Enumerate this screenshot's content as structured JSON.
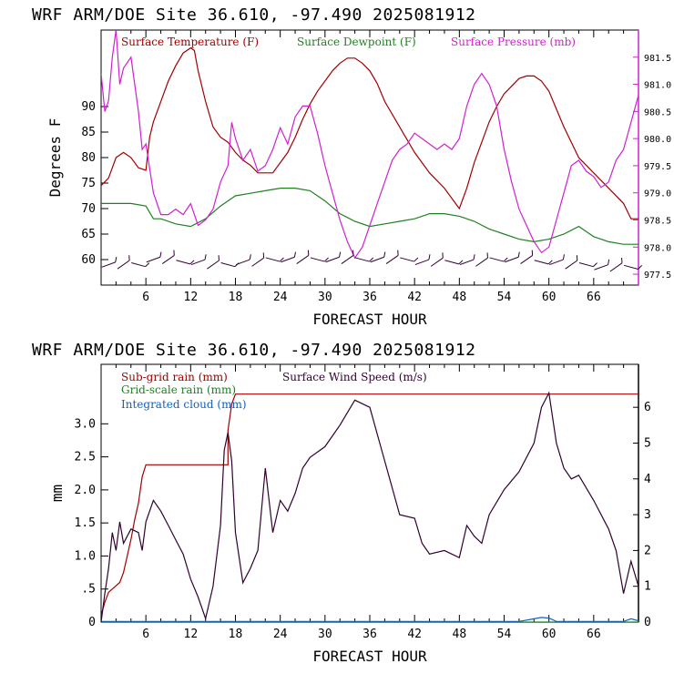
{
  "chart_data": [
    {
      "type": "line",
      "title": "WRF   ARM/DOE Site  36.610, -97.490  2025081912",
      "xlabel": "FORECAST HOUR",
      "ylabel": "Degrees F",
      "xlim": [
        0,
        72
      ],
      "ylim": [
        55,
        105
      ],
      "y2lim": [
        977.3,
        982.0
      ],
      "xticks": [
        6,
        12,
        18,
        24,
        30,
        36,
        42,
        48,
        54,
        60,
        66
      ],
      "yticks": [
        60,
        65,
        70,
        75,
        80,
        85,
        90
      ],
      "y2ticks": [
        977.5,
        978.0,
        978.5,
        979.0,
        979.5,
        980.0,
        980.5,
        981.0,
        981.5
      ],
      "y2ticklabels": [
        "977.5",
        "978.0",
        "978.5",
        "979.0",
        "979.5",
        "980.0",
        "980.5",
        "981.0",
        "981.5"
      ],
      "colors": {
        "temp": "#a00000",
        "dew": "#208020",
        "pres": "#d020d0",
        "barb": "#300030"
      },
      "series": [
        {
          "name": "Surface Temperature (F)",
          "axis": "left",
          "x": [
            0,
            1,
            2,
            3,
            4,
            5,
            6,
            6.5,
            7,
            8,
            9,
            10,
            11,
            12,
            12.5,
            13,
            14,
            15,
            16,
            17,
            18,
            19,
            20,
            21,
            22,
            23,
            24,
            25,
            26,
            27,
            28,
            29,
            30,
            31,
            32,
            33,
            34,
            35,
            36,
            37,
            38,
            40,
            42,
            44,
            46,
            48,
            49,
            50,
            51,
            52,
            53,
            54,
            55,
            56,
            57,
            58,
            59,
            60,
            62,
            64,
            66,
            68,
            70,
            71,
            72
          ],
          "y": [
            74.5,
            76,
            80,
            81,
            80,
            78,
            77.5,
            84,
            87,
            91,
            95,
            98,
            100.5,
            101.5,
            101,
            97,
            91,
            86,
            84,
            83,
            81,
            79.5,
            78.5,
            77,
            77,
            77,
            79,
            81,
            84,
            87.5,
            90.5,
            93,
            95,
            97,
            98.5,
            99.5,
            99.5,
            98.5,
            97,
            94.5,
            91,
            86,
            81,
            77,
            74,
            70,
            74,
            79,
            83,
            87,
            90,
            92.5,
            94,
            95.5,
            96,
            96,
            95,
            93,
            86,
            80,
            77,
            74,
            71,
            68,
            68
          ]
        },
        {
          "name": "Surface Dewpoint (F)",
          "axis": "left",
          "x": [
            0,
            2,
            4,
            6,
            7,
            8,
            10,
            12,
            14,
            16,
            18,
            20,
            22,
            24,
            26,
            28,
            30,
            32,
            34,
            36,
            38,
            40,
            42,
            44,
            46,
            48,
            50,
            52,
            54,
            56,
            58,
            60,
            62,
            64,
            66,
            68,
            70,
            72
          ],
          "y": [
            71,
            71,
            71,
            70.5,
            68,
            68,
            67,
            66.5,
            68,
            70.5,
            72.5,
            73,
            73.5,
            74,
            74,
            73.5,
            71.5,
            69,
            67.5,
            66.5,
            67,
            67.5,
            68,
            69,
            69,
            68.5,
            67.5,
            66,
            65,
            64,
            63.5,
            64,
            65,
            66.5,
            64.5,
            63.5,
            63,
            63
          ]
        },
        {
          "name": "Surface Pressure (mb)",
          "axis": "right",
          "x": [
            0,
            0.5,
            1,
            1.5,
            2,
            2.5,
            3,
            4,
            5,
            5.5,
            6,
            7,
            8,
            9,
            10,
            11,
            12,
            13,
            14,
            15,
            16,
            17,
            17.5,
            18,
            19,
            20,
            21,
            22,
            23,
            24,
            25,
            26,
            27,
            28,
            29,
            30,
            31,
            32,
            33,
            34,
            35,
            36,
            37,
            38,
            39,
            40,
            41,
            42,
            43,
            44,
            45,
            46,
            47,
            48,
            49,
            50,
            51,
            52,
            53,
            54,
            55,
            56,
            57,
            58,
            59,
            60,
            61,
            62,
            63,
            64,
            65,
            66,
            67,
            68,
            69,
            70,
            71,
            72
          ],
          "y": [
            981.2,
            980.5,
            980.7,
            981.5,
            982.0,
            981.0,
            981.3,
            981.5,
            980.5,
            979.8,
            979.9,
            979.0,
            978.6,
            978.6,
            978.7,
            978.6,
            978.8,
            978.4,
            978.5,
            978.7,
            979.2,
            979.5,
            980.3,
            980.0,
            979.6,
            979.8,
            979.4,
            979.5,
            979.8,
            980.2,
            979.9,
            980.4,
            980.6,
            980.6,
            980.1,
            979.5,
            979.0,
            978.5,
            978.1,
            977.8,
            978.0,
            978.4,
            978.8,
            979.2,
            979.6,
            979.8,
            979.9,
            980.1,
            980.0,
            979.9,
            979.8,
            979.9,
            979.8,
            980.0,
            980.6,
            981.0,
            981.2,
            981.0,
            980.6,
            979.8,
            979.2,
            978.7,
            978.4,
            978.1,
            977.9,
            978.0,
            978.5,
            979.0,
            979.5,
            979.6,
            979.4,
            979.3,
            979.1,
            979.2,
            979.6,
            979.8,
            980.3,
            980.8
          ]
        },
        {
          "name": "wind barbs",
          "axis": "left",
          "x": [
            1,
            3,
            5,
            7,
            9,
            11,
            13,
            15,
            17,
            19,
            21,
            23,
            25,
            27,
            29,
            31,
            33,
            35,
            37,
            39,
            41,
            43,
            45,
            47,
            49,
            51,
            53,
            55,
            57,
            59,
            61,
            63,
            65,
            67,
            69,
            71
          ],
          "y": [
            59,
            59,
            59,
            60,
            60,
            59.5,
            59.5,
            59,
            59,
            59.5,
            59.5,
            60,
            60,
            60,
            60,
            60,
            60,
            60,
            60,
            60,
            60,
            59.5,
            59.5,
            59.5,
            59.5,
            59.5,
            60,
            60,
            60,
            59.5,
            59.5,
            59,
            59,
            58.5,
            58.5,
            58.5
          ]
        }
      ]
    },
    {
      "type": "line",
      "title": "WRF   ARM/DOE Site  36.610, -97.490  2025081912",
      "xlabel": "FORECAST HOUR",
      "ylabel": "mm",
      "xlim": [
        0,
        72
      ],
      "ylim": [
        0,
        3.9
      ],
      "y2lim": [
        0,
        7.2
      ],
      "xticks": [
        6,
        12,
        18,
        24,
        30,
        36,
        42,
        48,
        54,
        60,
        66
      ],
      "yticks": [
        0,
        0.5,
        1.0,
        1.5,
        2.0,
        2.5,
        3.0
      ],
      "yticklabels": [
        "0",
        ".5",
        "1.0",
        "1.5",
        "2.0",
        "2.5",
        "3.0"
      ],
      "y2ticks": [
        0,
        1,
        2,
        3,
        4,
        5,
        6
      ],
      "y2ticklabels": [
        "0",
        "1",
        "2",
        "3",
        "4",
        "5",
        "6"
      ],
      "colors": {
        "subgrid": "#a00000",
        "grid": "#208020",
        "cloud": "#1060c0",
        "wind": "#300030"
      },
      "series": [
        {
          "name": "Sub-grid rain (mm)",
          "axis": "left",
          "x": [
            0,
            0.5,
            1,
            1.5,
            2,
            2.5,
            3,
            3.5,
            4,
            4.5,
            5,
            5.5,
            6,
            17,
            17,
            17.5,
            18,
            72
          ],
          "y": [
            0.1,
            0.3,
            0.45,
            0.5,
            0.55,
            0.6,
            0.75,
            1.0,
            1.25,
            1.55,
            1.8,
            2.2,
            2.38,
            2.38,
            2.9,
            3.3,
            3.45,
            3.45
          ]
        },
        {
          "name": "Grid-scale rain (mm)",
          "axis": "left",
          "x": [
            0,
            72
          ],
          "y": [
            0,
            0
          ]
        },
        {
          "name": "Integrated cloud (mm)",
          "axis": "left",
          "x": [
            0,
            56,
            58,
            59,
            60,
            61,
            70,
            71,
            72
          ],
          "y": [
            0.01,
            0.01,
            0.05,
            0.07,
            0.06,
            0.01,
            0.01,
            0.05,
            0.02
          ]
        },
        {
          "name": "Surface Wind Speed (m/s)",
          "axis": "right",
          "x": [
            0,
            0.5,
            1,
            1.5,
            2,
            2.5,
            3,
            4,
            5,
            5.5,
            6,
            7,
            8,
            9,
            10,
            11,
            12,
            13,
            14,
            15,
            16,
            16.5,
            17,
            17.5,
            18,
            19,
            20,
            21,
            22,
            23,
            24,
            25,
            26,
            27,
            28,
            30,
            32,
            34,
            36,
            38,
            40,
            42,
            43,
            44,
            46,
            48,
            49,
            50,
            51,
            52,
            54,
            56,
            58,
            59,
            60,
            61,
            62,
            63,
            64,
            66,
            68,
            69,
            70,
            71,
            72
          ],
          "y": [
            0,
            0.8,
            1.5,
            2.5,
            2.0,
            2.8,
            2.2,
            2.6,
            2.5,
            2.0,
            2.8,
            3.4,
            3.1,
            2.7,
            2.3,
            1.9,
            1.2,
            0.7,
            0.1,
            1.0,
            2.7,
            4.8,
            5.3,
            4.5,
            2.5,
            1.1,
            1.5,
            2.0,
            4.3,
            2.5,
            3.4,
            3.1,
            3.6,
            4.3,
            4.6,
            4.9,
            5.5,
            6.2,
            6.0,
            4.5,
            3.0,
            2.9,
            2.2,
            1.9,
            2.0,
            1.8,
            2.7,
            2.4,
            2.2,
            3.0,
            3.7,
            4.2,
            5.0,
            6.0,
            6.4,
            5.0,
            4.3,
            4.0,
            4.1,
            3.4,
            2.6,
            2.0,
            0.8,
            1.7,
            1.0
          ]
        }
      ]
    }
  ]
}
